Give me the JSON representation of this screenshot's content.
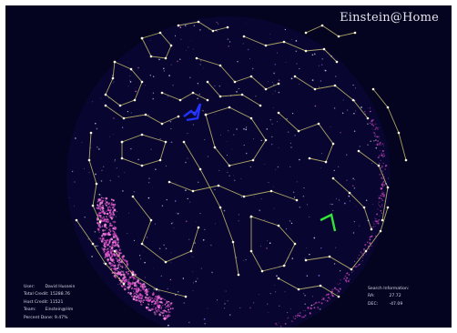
{
  "app": {
    "title": "Einstein@Home"
  },
  "user_info": {
    "user_label": "User:",
    "user_value": "David Hussein",
    "total_credit_label": "Total Credit:",
    "total_credit_value": "15288.76",
    "host_credit_label": "Host Credit:",
    "host_credit_value": "11521",
    "team_label": "Team:",
    "team_value": "Einstein@Hm",
    "percent_done_label": "Percent Done:",
    "percent_done_value": "9.47%"
  },
  "search_info": {
    "heading": "Search Information:",
    "ra_label": "RA:",
    "ra_value": "27.72",
    "dec_label": "DEC:",
    "dec_value": "-47.09"
  },
  "colors": {
    "background": "#040320",
    "constellation_lines": "#c8c06e",
    "stars": "#fffbe0",
    "pulsar_stream": "#e04ac8",
    "observatory_blue": "#2233ff",
    "observatory_green": "#33e63a"
  }
}
